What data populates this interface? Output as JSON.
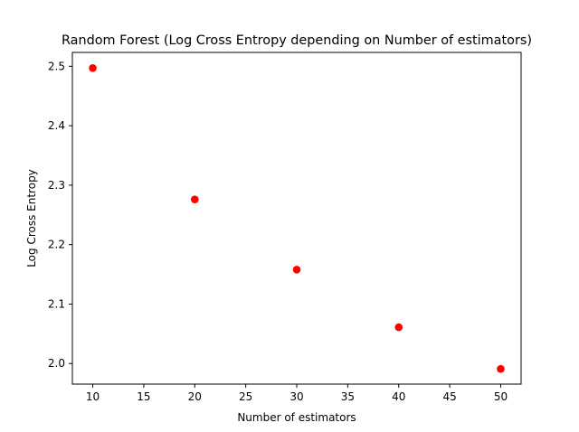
{
  "chart_data": {
    "type": "scatter",
    "title": "Random Forest (Log Cross Entropy depending on Number of estimators)",
    "xlabel": "Number of estimators",
    "ylabel": "Log Cross Entropy",
    "xlim": [
      8,
      52
    ],
    "ylim": [
      1.9654,
      2.5233
    ],
    "xticks": [
      10,
      15,
      20,
      25,
      30,
      35,
      40,
      45,
      50
    ],
    "yticks": [
      2.0,
      2.1,
      2.2,
      2.3,
      2.4,
      2.5
    ],
    "xtick_labels": [
      "10",
      "15",
      "20",
      "25",
      "30",
      "35",
      "40",
      "45",
      "50"
    ],
    "ytick_labels": [
      "2.0",
      "2.1",
      "2.2",
      "2.3",
      "2.4",
      "2.5"
    ],
    "grid": false,
    "series": [
      {
        "marker_color": "#ff0000",
        "x": [
          10,
          20,
          30,
          40,
          50
        ],
        "y": [
          2.497,
          2.276,
          2.158,
          2.061,
          1.991
        ]
      }
    ]
  }
}
